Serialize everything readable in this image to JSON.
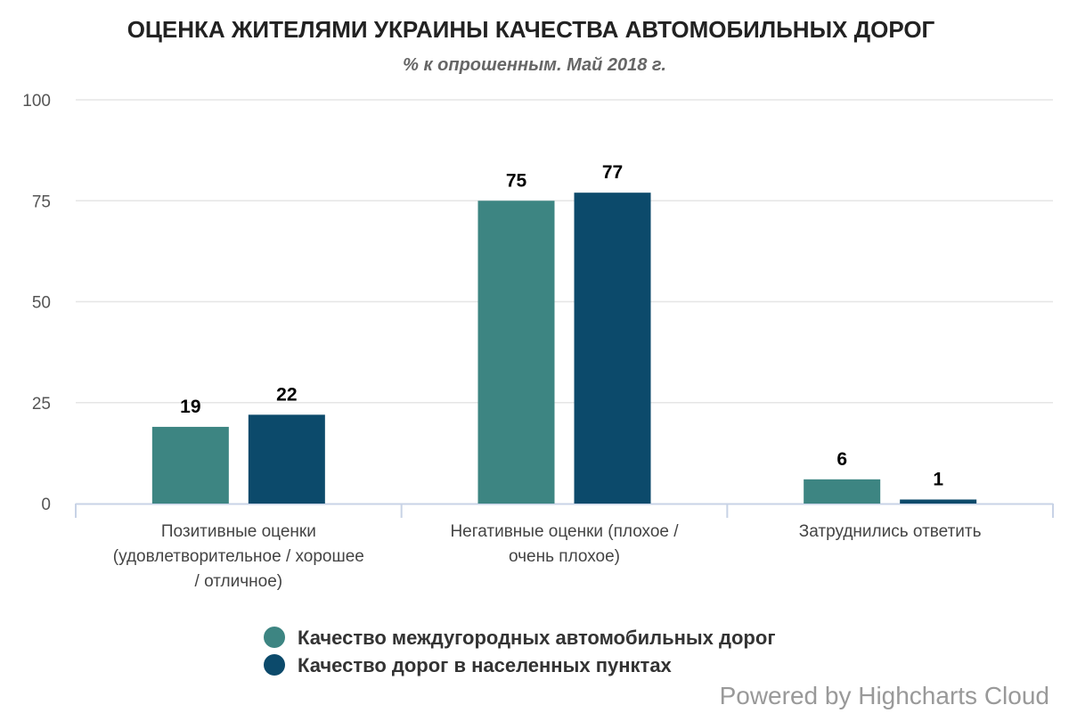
{
  "chart_data": {
    "type": "bar",
    "title": "ОЦЕНКА ЖИТЕЛЯМИ УКРАИНЫ КАЧЕСТВА АВТОМОБИЛЬНЫХ ДОРОГ",
    "subtitle": "% к опрошенным. Май 2018 г.",
    "categories": [
      [
        "Позитивные оценки",
        "(удовлетворительное / хорошее",
        "/ отличное)"
      ],
      [
        "Негативные оценки (плохое /",
        "очень плохое)"
      ],
      [
        "Затруднились ответить"
      ]
    ],
    "series": [
      {
        "name": "Качество междугородных автомобильных дорог",
        "color": "#3d8582",
        "values": [
          19,
          75,
          6
        ]
      },
      {
        "name": "Качество дорог в населенных пунктах",
        "color": "#0c4a6b",
        "values": [
          22,
          77,
          1
        ]
      }
    ],
    "ylim": [
      0,
      100
    ],
    "yticks": [
      0,
      25,
      50,
      75,
      100
    ],
    "grid": true,
    "legend": "bottom-center"
  },
  "credits": "Powered by Highcharts Cloud"
}
